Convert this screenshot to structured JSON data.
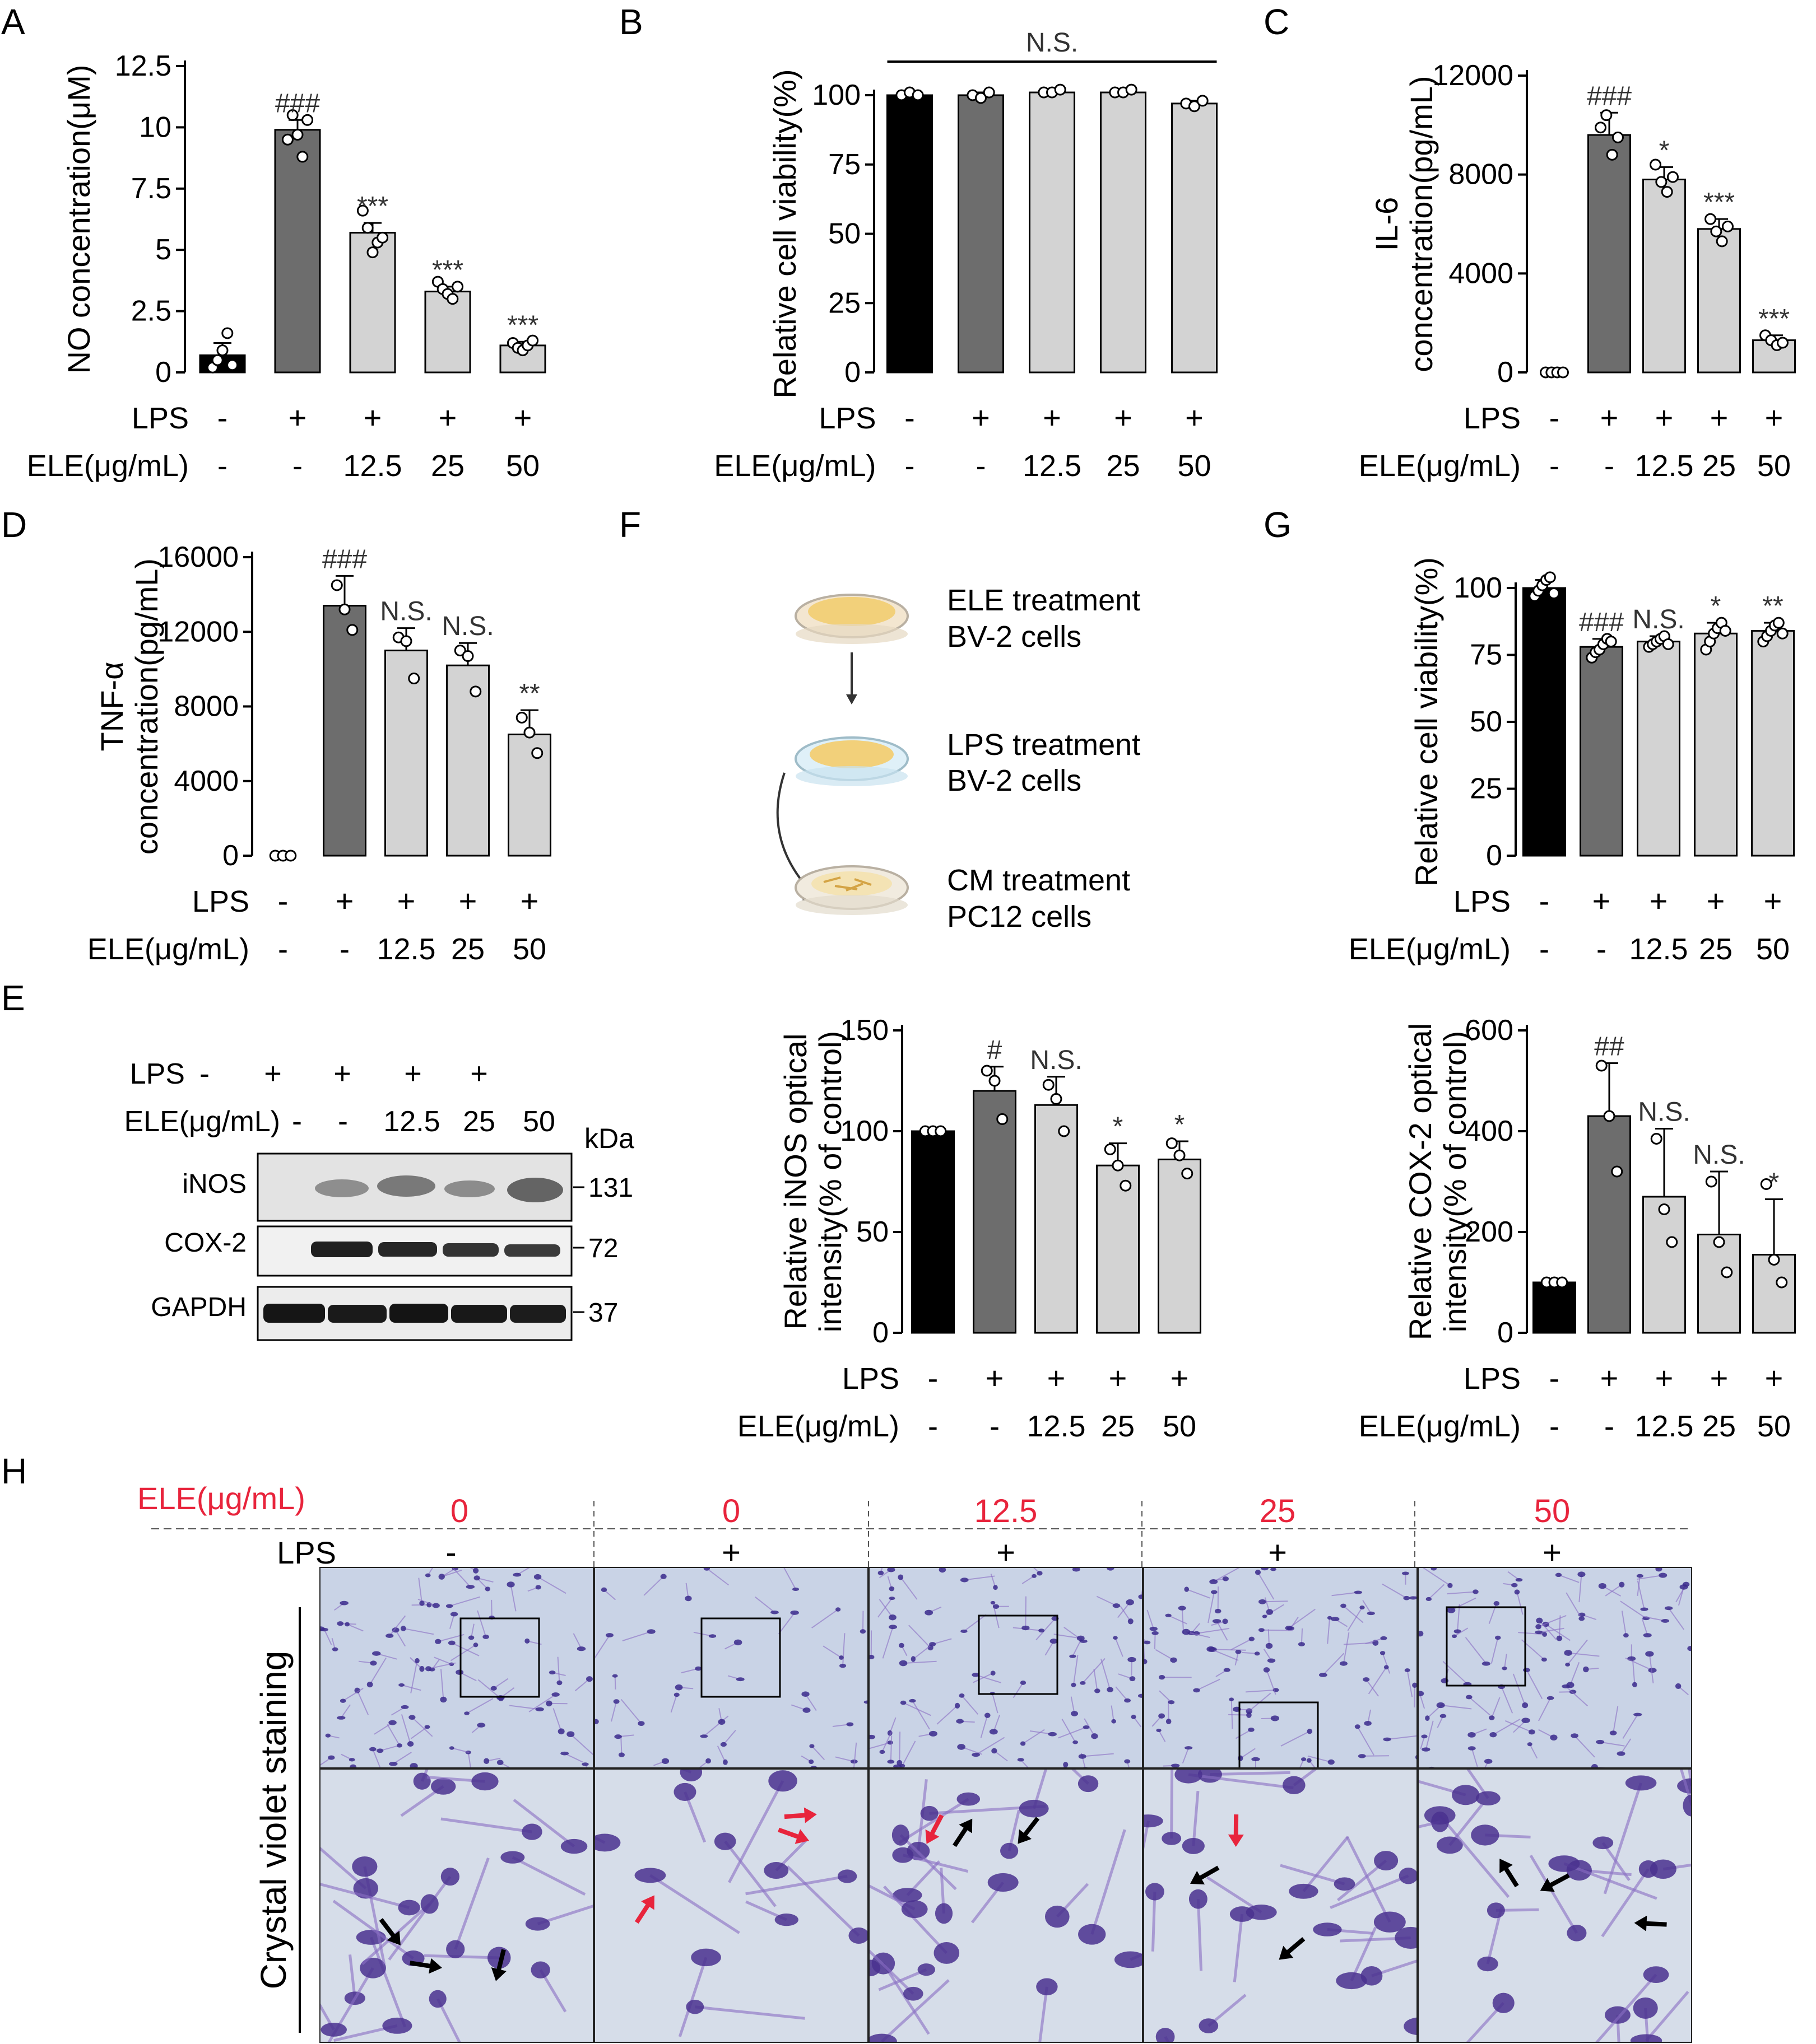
{
  "panel_labels": [
    "A",
    "B",
    "C",
    "D",
    "E",
    "F",
    "G",
    "H"
  ],
  "colors": {
    "ctrl": "#000000",
    "lps": "#6d6d6d",
    "ele": "#d3d3d3",
    "red": "#e8243c",
    "blot": "#2a2a2a"
  },
  "groups": {
    "lps": [
      "-",
      "+",
      "+",
      "+",
      "+"
    ],
    "ele": [
      "-",
      "-",
      "12.5",
      "25",
      "50"
    ],
    "lps_label": "LPS",
    "ele_label": "ELE(μg/mL)"
  },
  "chart_data": [
    {
      "id": "A",
      "type": "bar",
      "ylabel": "NO concentration(μM)",
      "ylim": [
        0,
        12.5
      ],
      "yticks": [
        "0",
        "2.5",
        "5",
        "7.5",
        "10",
        "12.5"
      ],
      "ytick_values": [
        0,
        2.5,
        5,
        7.5,
        10,
        12.5
      ],
      "values": [
        0.7,
        9.9,
        5.7,
        3.3,
        1.1
      ],
      "errors": [
        0.5,
        0.4,
        0.4,
        0.2,
        0.15
      ],
      "points": [
        [
          0.2,
          0.5,
          0.9,
          1.6,
          0.3
        ],
        [
          9.5,
          10.5,
          9.7,
          8.8,
          10.3
        ],
        [
          6.6,
          5.9,
          4.9,
          5.3,
          5.5
        ],
        [
          3.7,
          3.4,
          3.2,
          3.0,
          3.5
        ],
        [
          1.2,
          1.0,
          0.9,
          1.1,
          1.3
        ]
      ],
      "annotations": [
        "",
        "###",
        "***",
        "***",
        "***"
      ]
    },
    {
      "id": "B",
      "type": "bar",
      "ylabel": "Relative cell viability(%)",
      "ylim": [
        0,
        100
      ],
      "yticks": [
        "0",
        "25",
        "50",
        "75",
        "100"
      ],
      "ytick_values": [
        0,
        25,
        50,
        75,
        100
      ],
      "values": [
        100,
        100,
        101,
        101,
        97
      ],
      "errors": [
        1,
        1,
        1,
        1,
        1
      ],
      "points": [
        [
          100,
          101,
          100
        ],
        [
          100,
          99,
          101
        ],
        [
          101,
          101,
          102
        ],
        [
          101,
          101,
          102
        ],
        [
          97,
          96,
          98
        ]
      ],
      "annotations": [
        "",
        "",
        "",
        "",
        ""
      ],
      "bracket": "N.S."
    },
    {
      "id": "C",
      "type": "bar",
      "ylabel": "IL-6 concentration(pg/mL)",
      "ylabel_lines": [
        "IL-6",
        "concentration(pg/mL)"
      ],
      "ylim": [
        0,
        12000
      ],
      "yticks": [
        "0",
        "4000",
        "8000",
        "12000"
      ],
      "ytick_values": [
        0,
        4000,
        8000,
        12000
      ],
      "values": [
        0,
        9600,
        7800,
        5800,
        1300
      ],
      "errors": [
        50,
        900,
        500,
        400,
        200
      ],
      "points": [
        [
          0,
          0,
          0,
          0
        ],
        [
          9900,
          10400,
          8800,
          9500
        ],
        [
          8400,
          7700,
          7300,
          7900
        ],
        [
          6200,
          5700,
          5300,
          5900
        ],
        [
          1500,
          1300,
          1100,
          1200
        ]
      ],
      "annotations": [
        "",
        "###",
        "*",
        "***",
        "***"
      ]
    },
    {
      "id": "D",
      "type": "bar",
      "ylabel": "TNF-α concentration(pg/mL)",
      "ylabel_lines": [
        "TNF-α",
        "concentration(pg/mL)"
      ],
      "ylim": [
        0,
        16000
      ],
      "yticks": [
        "0",
        "4000",
        "8000",
        "12000",
        "16000"
      ],
      "ytick_values": [
        0,
        4000,
        8000,
        12000,
        16000
      ],
      "values": [
        0,
        13400,
        11000,
        10200,
        6500
      ],
      "errors": [
        100,
        1600,
        1200,
        1200,
        1300
      ],
      "points": [
        [
          0,
          0,
          0
        ],
        [
          14500,
          13200,
          12100
        ],
        [
          11700,
          11500,
          9500
        ],
        [
          11000,
          10700,
          8800
        ],
        [
          7400,
          6600,
          5500
        ]
      ],
      "annotations": [
        "",
        "###",
        "N.S.",
        "N.S.",
        "**"
      ]
    },
    {
      "id": "F",
      "type": "bar",
      "ylabel": "Relative iNOS optical intensity(% of control)",
      "ylabel_lines": [
        "Relative iNOS optical",
        "intensity(% of control)"
      ],
      "ylim": [
        0,
        150
      ],
      "yticks": [
        "0",
        "50",
        "100",
        "150"
      ],
      "ytick_values": [
        0,
        50,
        100,
        150
      ],
      "values": [
        100,
        120,
        113,
        83,
        86
      ],
      "errors": [
        1,
        12,
        14,
        11,
        9
      ],
      "points": [
        [
          100,
          100,
          100
        ],
        [
          130,
          125,
          106
        ],
        [
          123,
          116,
          100
        ],
        [
          91,
          83,
          73
        ],
        [
          94,
          88,
          79
        ]
      ],
      "annotations": [
        "",
        "#",
        "N.S.",
        "*",
        "*"
      ]
    },
    {
      "id": "G1",
      "type": "bar",
      "ylabel": "Relative cell viability(%)",
      "ylim": [
        0,
        100
      ],
      "yticks": [
        "0",
        "25",
        "50",
        "75",
        "100"
      ],
      "ytick_values": [
        0,
        25,
        50,
        75,
        100
      ],
      "values": [
        100,
        78,
        80,
        83,
        84
      ],
      "errors": [
        3,
        3,
        2,
        4,
        3
      ],
      "points": [
        [
          97,
          99,
          101,
          103,
          104,
          98
        ],
        [
          74,
          76,
          77,
          79,
          81,
          80
        ],
        [
          78,
          79,
          80,
          81,
          82,
          79
        ],
        [
          77,
          80,
          83,
          85,
          87,
          84
        ],
        [
          80,
          82,
          84,
          86,
          87,
          83
        ]
      ],
      "annotations": [
        "",
        "###",
        "N.S.",
        "*",
        "**"
      ]
    },
    {
      "id": "G2",
      "type": "bar",
      "ylabel": "Relative COX-2 optical intensity(% of control)",
      "ylabel_lines": [
        "Relative COX-2 optical",
        "intensity(% of control)"
      ],
      "ylim": [
        0,
        600
      ],
      "yticks": [
        "0",
        "200",
        "400",
        "600"
      ],
      "ytick_values": [
        0,
        200,
        400,
        600
      ],
      "values": [
        100,
        430,
        270,
        195,
        155
      ],
      "errors": [
        3,
        105,
        135,
        125,
        110
      ],
      "points": [
        [
          100,
          100,
          100
        ],
        [
          530,
          430,
          320
        ],
        [
          385,
          245,
          180
        ],
        [
          300,
          180,
          120
        ],
        [
          295,
          145,
          100
        ]
      ],
      "annotations": [
        "",
        "##",
        "N.S.",
        "N.S.",
        "*"
      ]
    }
  ],
  "blot": {
    "kda_label": "kDa",
    "rows": [
      {
        "name": "iNOS",
        "kda": "131"
      },
      {
        "name": "COX-2",
        "kda": "72"
      },
      {
        "name": "GAPDH",
        "kda": "37"
      }
    ]
  },
  "schematic": {
    "steps": [
      {
        "line1": "ELE treatment",
        "line2": "BV-2 cells"
      },
      {
        "line1": "LPS treatment",
        "line2": "BV-2 cells"
      },
      {
        "line1": "CM treatment",
        "line2": "PC12 cells"
      }
    ]
  },
  "panel_h": {
    "ele_label": "ELE(μg/mL)",
    "lps_label": "LPS",
    "ele_values": [
      "0",
      "0",
      "12.5",
      "25",
      "50"
    ],
    "lps_values": [
      "-",
      "+",
      "+",
      "+",
      "+"
    ],
    "side_label": "Crystal violet staining"
  }
}
